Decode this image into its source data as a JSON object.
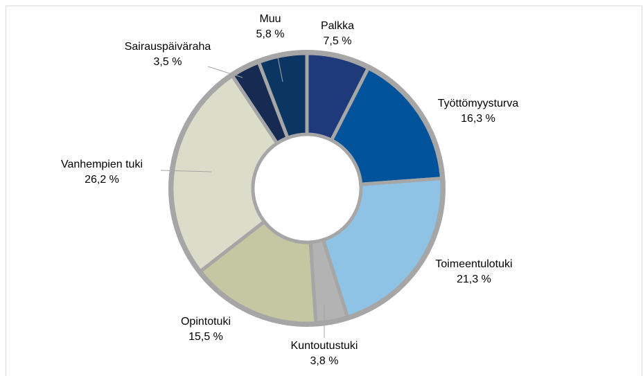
{
  "chart_data": {
    "type": "donut",
    "categories": [
      "Palkka",
      "Työttömyysturva",
      "Toimeentulotuki",
      "Kuntoutustuki",
      "Opintotuki",
      "Vanhempien tuki",
      "Sairauspäiväraha",
      "Muu"
    ],
    "values": [
      7.5,
      16.3,
      21.3,
      3.8,
      15.5,
      26.2,
      3.5,
      5.8
    ],
    "value_labels": [
      "7,5 %",
      "16,3 %",
      "21,3 %",
      "3,8 %",
      "15,5 %",
      "26,2 %",
      "3,5 %",
      "5,8 %"
    ],
    "colors": [
      "#1f3a7a",
      "#00529b",
      "#8ec3e6",
      "#b3b3b3",
      "#c5c6a2",
      "#dcdccb",
      "#172b52",
      "#0b3563"
    ]
  }
}
